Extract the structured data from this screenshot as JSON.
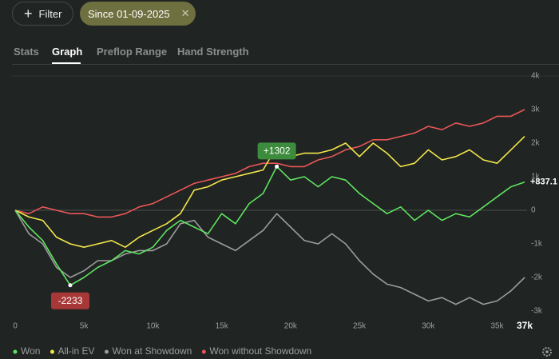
{
  "toolbar": {
    "filter": "Filter",
    "date_chip": "Since 01-09-2025"
  },
  "tabs": [
    "Stats",
    "Graph",
    "Preflop Range",
    "Hand Strength"
  ],
  "chart_data": {
    "type": "line",
    "x": [
      0,
      1000,
      2000,
      3000,
      4000,
      5000,
      6000,
      7000,
      8000,
      9000,
      10000,
      11000,
      12000,
      13000,
      14000,
      15000,
      16000,
      17000,
      18000,
      19000,
      20000,
      21000,
      22000,
      23000,
      24000,
      25000,
      26000,
      27000,
      28000,
      29000,
      30000,
      31000,
      32000,
      33000,
      34000,
      35000,
      36000,
      37000
    ],
    "xlim": [
      0,
      37000
    ],
    "xticks": [
      0,
      {
        "value": 5000,
        "label": "5k"
      },
      {
        "value": 10000,
        "label": "10k"
      },
      {
        "value": 15000,
        "label": "15k"
      },
      {
        "value": 20000,
        "label": "20k"
      },
      {
        "value": 25000,
        "label": "25k"
      },
      {
        "value": 30000,
        "label": "30k"
      },
      {
        "value": 35000,
        "label": "35k"
      },
      {
        "value": 37000,
        "label": "37k"
      }
    ],
    "ylim": [
      -3300,
      4200
    ],
    "yticks": [
      {
        "value": 4000,
        "label": "4k"
      },
      {
        "value": 3000,
        "label": "3k"
      },
      {
        "value": 2000,
        "label": "2k"
      },
      {
        "value": 1000,
        "label": "1k"
      },
      0,
      {
        "value": -1000,
        "label": "-1k"
      },
      {
        "value": -2000,
        "label": "-2k"
      },
      {
        "value": -3000,
        "label": "-3k"
      }
    ],
    "zero_line": true,
    "series": [
      {
        "name": "Won",
        "color": "#5fe35f",
        "values": [
          0,
          -500,
          -900,
          -1600,
          -2233,
          -2000,
          -1700,
          -1500,
          -1200,
          -1300,
          -1100,
          -600,
          -300,
          -500,
          -700,
          -100,
          -400,
          200,
          500,
          1302,
          900,
          1000,
          700,
          1000,
          900,
          500,
          200,
          -100,
          100,
          -300,
          0,
          -300,
          -100,
          -200,
          100,
          400,
          700,
          837.1
        ]
      },
      {
        "name": "All-in EV",
        "color": "#f2e64a",
        "values": [
          0,
          -200,
          -300,
          -800,
          -1000,
          -1100,
          -1000,
          -900,
          -1100,
          -800,
          -600,
          -400,
          -100,
          600,
          700,
          900,
          1000,
          1100,
          1200,
          1900,
          1600,
          1700,
          1700,
          1800,
          2000,
          1600,
          2000,
          1700,
          1300,
          1400,
          1800,
          1500,
          1600,
          1800,
          1500,
          1400,
          1800,
          2200
        ]
      },
      {
        "name": "Won at Showdown",
        "color": "#9c9c9c",
        "values": [
          0,
          -700,
          -1000,
          -1700,
          -2000,
          -1800,
          -1500,
          -1500,
          -1300,
          -1200,
          -1200,
          -1000,
          -400,
          -300,
          -800,
          -1000,
          -1200,
          -900,
          -600,
          -100,
          -500,
          -900,
          -1000,
          -700,
          -1000,
          -1500,
          -1900,
          -2200,
          -2300,
          -2500,
          -2700,
          -2600,
          -2800,
          -2600,
          -2800,
          -2700,
          -2400,
          -2000
        ]
      },
      {
        "name": "Won without Showdown",
        "color": "#ea5656",
        "values": [
          0,
          -100,
          100,
          0,
          -100,
          -100,
          -200,
          -200,
          -100,
          100,
          200,
          400,
          600,
          800,
          900,
          1000,
          1100,
          1300,
          1400,
          1400,
          1300,
          1300,
          1500,
          1600,
          1800,
          1900,
          2100,
          2100,
          2200,
          2300,
          2500,
          2400,
          2600,
          2500,
          2600,
          2800,
          2800,
          3000
        ]
      }
    ],
    "annotations": [
      {
        "label": "+1302",
        "x": 19000,
        "value": 1302,
        "color": "#3d8c3d"
      },
      {
        "label": "-2233",
        "x": 4000,
        "value": -2233,
        "color": "#a83838"
      }
    ],
    "end_label": {
      "label": "+837.1",
      "x": 37000,
      "value": 837.1
    }
  }
}
